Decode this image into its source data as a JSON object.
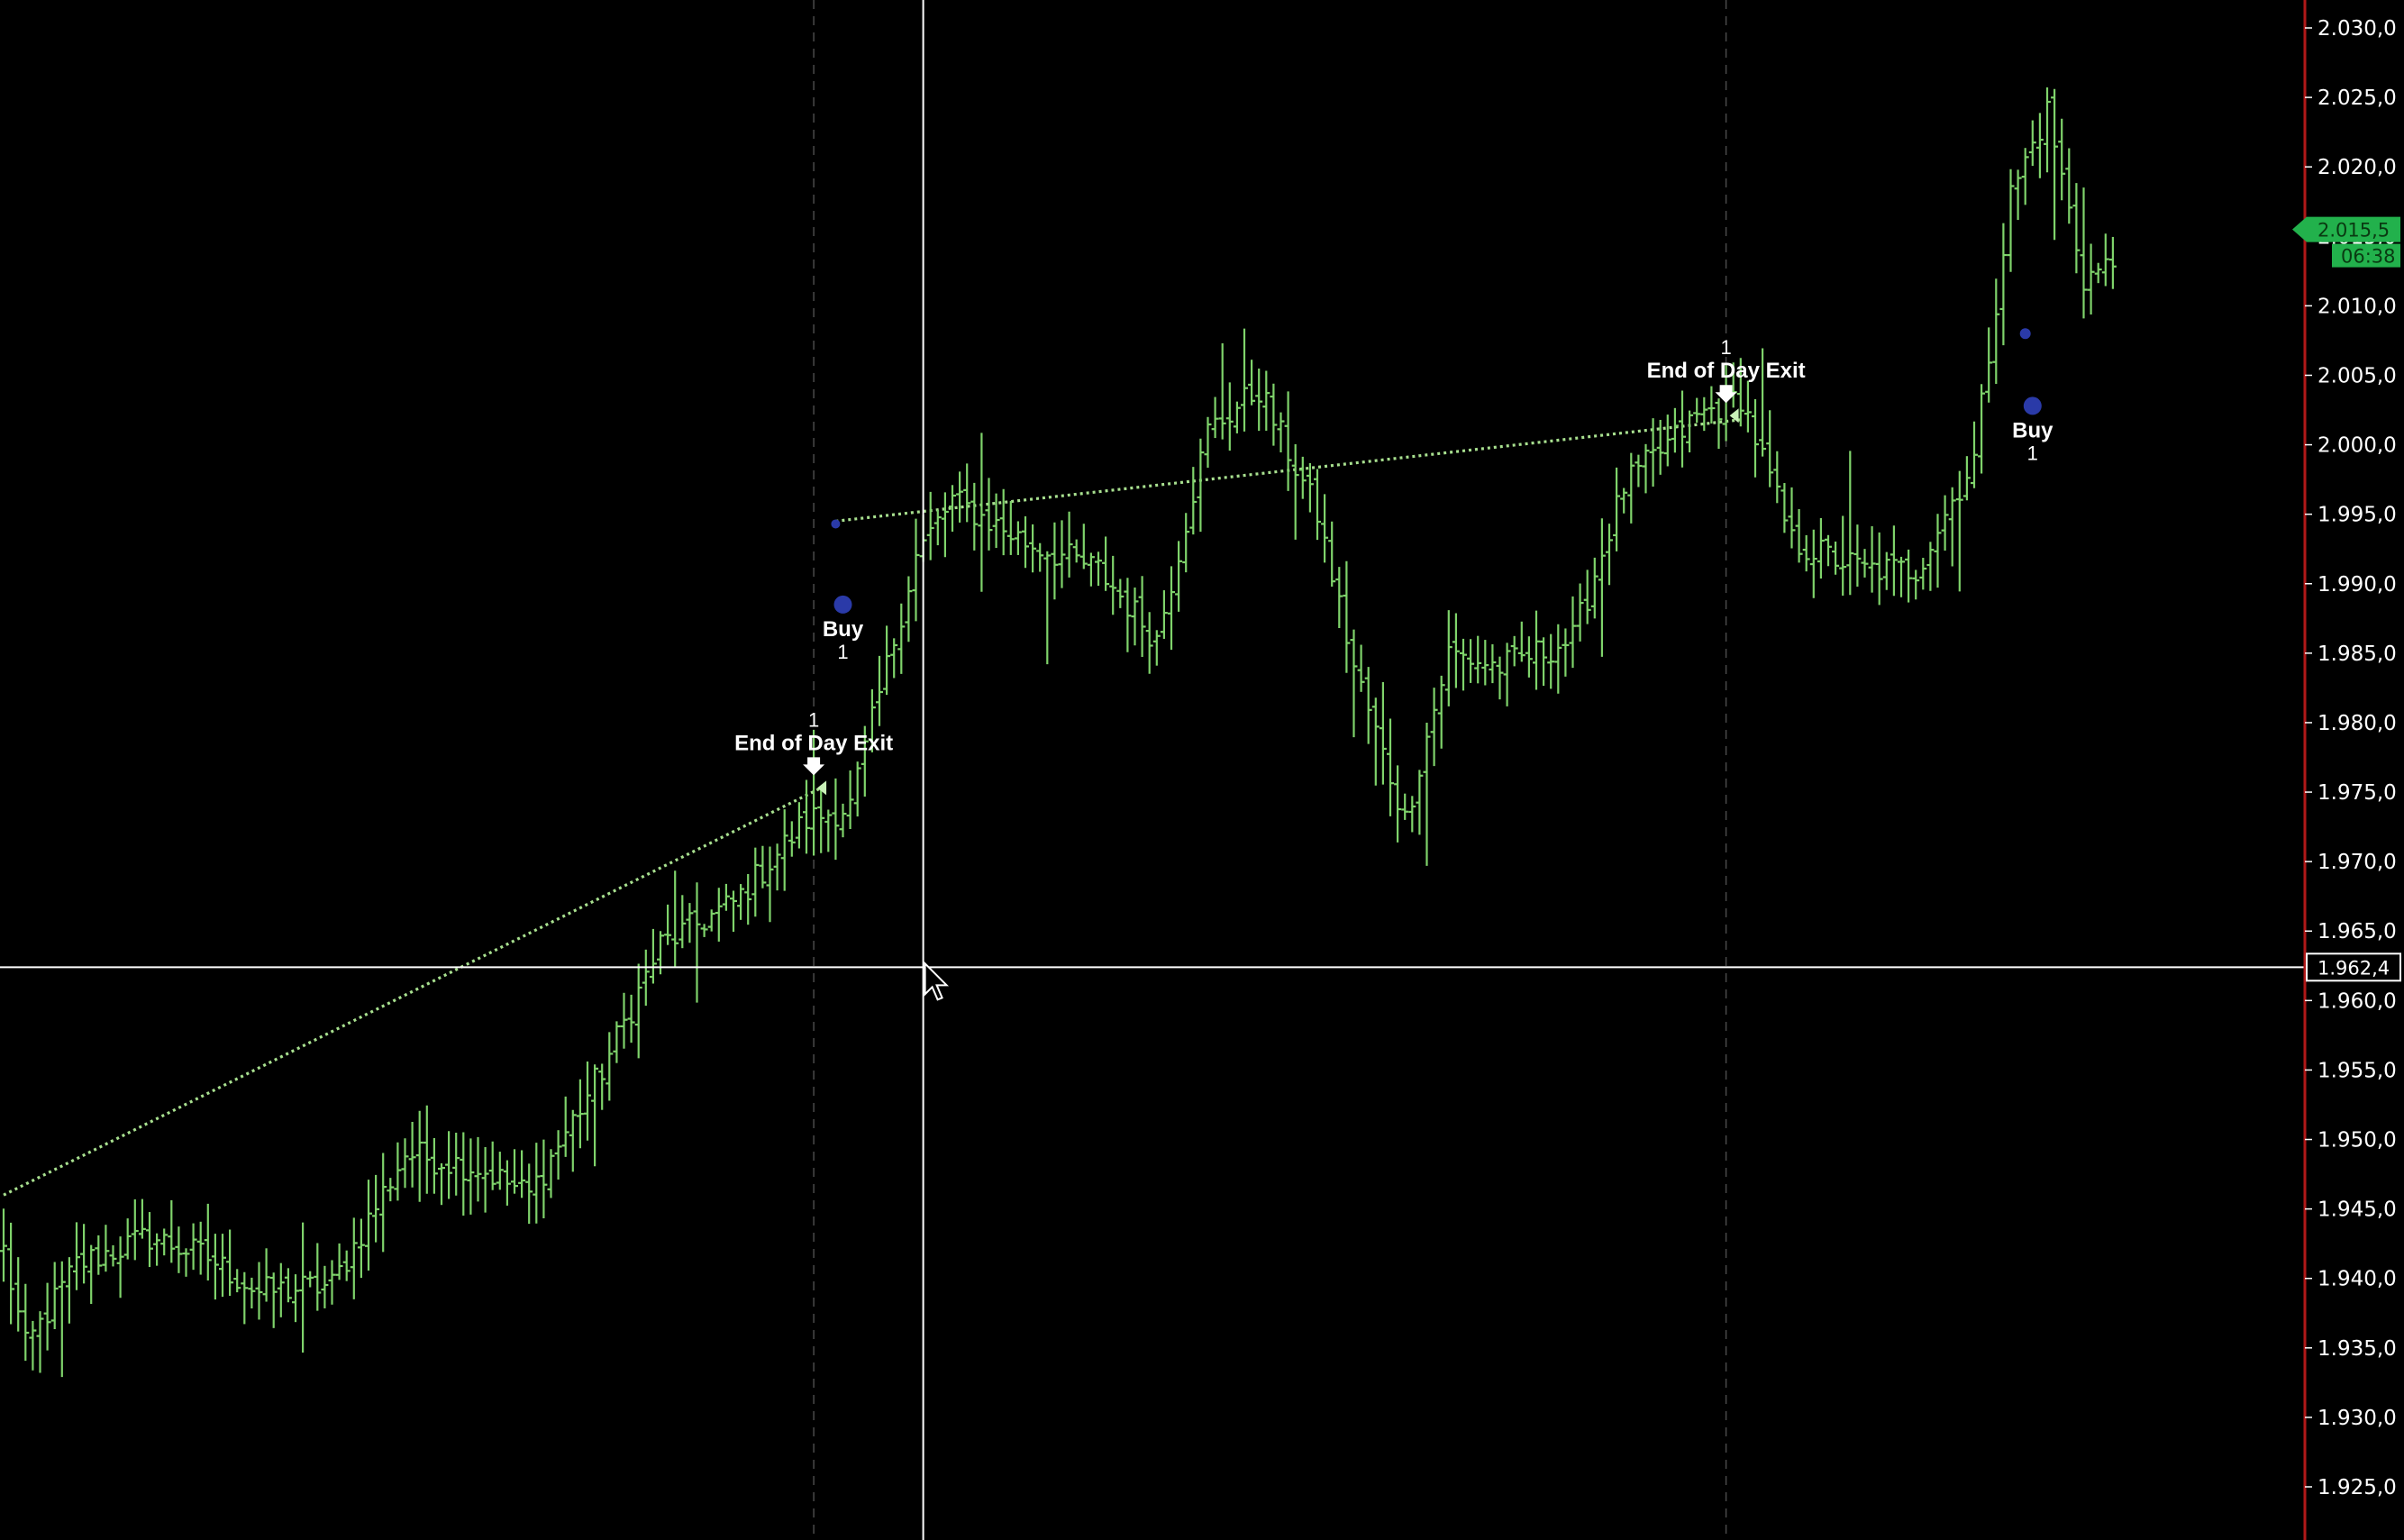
{
  "chart_data": {
    "type": "bar",
    "subtype": "ohlc",
    "grid": false,
    "y_axis": {
      "side": "right",
      "ylim": [
        1922.5,
        2032.5
      ],
      "ticks": [
        "2.030,0",
        "2.025,0",
        "2.020,0",
        "2.015,0",
        "2.010,0",
        "2.005,0",
        "2.000,0",
        "1.995,0",
        "1.990,0",
        "1.985,0",
        "1.980,0",
        "1.975,0",
        "1.970,0",
        "1.965,0",
        "1.960,0",
        "1.955,0",
        "1.950,0",
        "1.945,0",
        "1.940,0",
        "1.935,0",
        "1.930,0",
        "1.925,0"
      ],
      "tick_values": [
        2030,
        2025,
        2020,
        2015,
        2010,
        2005,
        2000,
        1995,
        1990,
        1985,
        1980,
        1975,
        1970,
        1965,
        1960,
        1955,
        1950,
        1945,
        1940,
        1935,
        1930,
        1925
      ]
    },
    "bars": {
      "count": 300,
      "color": "#7fd36b",
      "anchors": [
        {
          "i": 0,
          "p": 1942
        },
        {
          "i": 3,
          "p": 1935
        },
        {
          "i": 10,
          "p": 1941
        },
        {
          "i": 20,
          "p": 1943
        },
        {
          "i": 28,
          "p": 1941.5
        },
        {
          "i": 35,
          "p": 1939
        },
        {
          "i": 45,
          "p": 1939.5
        },
        {
          "i": 55,
          "p": 1949
        },
        {
          "i": 65,
          "p": 1948
        },
        {
          "i": 72,
          "p": 1946
        },
        {
          "i": 82,
          "p": 1955
        },
        {
          "i": 90,
          "p": 1964
        },
        {
          "i": 100,
          "p": 1967
        },
        {
          "i": 110,
          "p": 1973
        },
        {
          "i": 116,
          "p": 1974
        },
        {
          "i": 125,
          "p": 1992
        },
        {
          "i": 130,
          "p": 1996
        },
        {
          "i": 140,
          "p": 1993
        },
        {
          "i": 150,
          "p": 1991
        },
        {
          "i": 158,
          "p": 1986
        },
        {
          "i": 165,
          "p": 2001
        },
        {
          "i": 172,
          "p": 2004
        },
        {
          "i": 180,
          "p": 1995
        },
        {
          "i": 185,
          "p": 1984
        },
        {
          "i": 192,
          "p": 1973
        },
        {
          "i": 198,
          "p": 1985
        },
        {
          "i": 205,
          "p": 1984
        },
        {
          "i": 215,
          "p": 1986
        },
        {
          "i": 222,
          "p": 1997
        },
        {
          "i": 232,
          "p": 2002
        },
        {
          "i": 238,
          "p": 2003.5
        },
        {
          "i": 245,
          "p": 1993
        },
        {
          "i": 255,
          "p": 1991
        },
        {
          "i": 262,
          "p": 1991
        },
        {
          "i": 270,
          "p": 1999
        },
        {
          "i": 275,
          "p": 2018
        },
        {
          "i": 280,
          "p": 2024
        },
        {
          "i": 285,
          "p": 2012
        },
        {
          "i": 289,
          "p": 2013
        }
      ]
    },
    "trade_lines": [
      {
        "from": {
          "i": 0,
          "p": 1946
        },
        "to": {
          "i": 112,
          "p": 1975.3
        }
      },
      {
        "from": {
          "i": 114,
          "p": 1994.5
        },
        "to": {
          "i": 238,
          "p": 2001.8
        }
      }
    ],
    "cursor": {
      "i": 126,
      "y_value_label": "1.962,4",
      "p": 1962.4
    },
    "session_breaks": [
      111,
      236
    ],
    "last_price": {
      "value_label": "2.015,5",
      "time_label": "06:38",
      "p": 2015.5
    },
    "markers": [
      {
        "label": "End of Day Exit",
        "qty": "1",
        "i": 111,
        "p": 1975.3,
        "kind": "exit"
      },
      {
        "label": "Buy",
        "qty": "1",
        "i": 115,
        "p": 1988.5,
        "kind": "buy"
      },
      {
        "label": "End of Day Exit",
        "qty": "1",
        "i": 236,
        "p": 2002.1,
        "kind": "exit"
      },
      {
        "label": "Buy",
        "qty": "1",
        "i": 278,
        "p": 2002.8,
        "kind": "buy"
      }
    ]
  },
  "colors": {
    "background": "#000000",
    "bars": "#7fd36b",
    "trade_line": "#a8e08f",
    "crosshair": "#ffffff",
    "axis_border": "#b01818",
    "last_price_tag": "#22b14c",
    "buy_dot": "#2a3aa8"
  }
}
